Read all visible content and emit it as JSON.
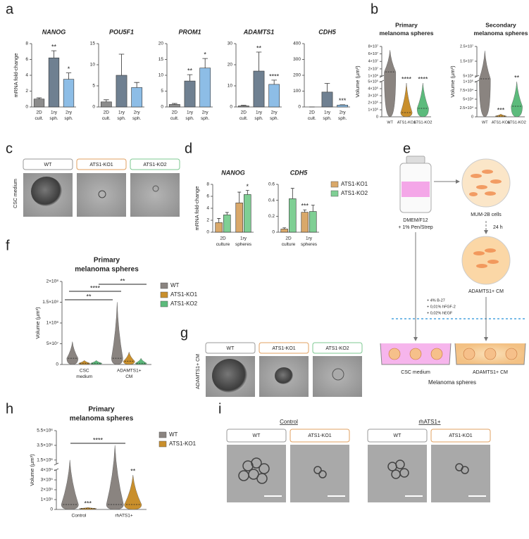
{
  "panel_letters": [
    "a",
    "b",
    "c",
    "d",
    "e",
    "f",
    "g",
    "h",
    "i"
  ],
  "panel_c": {
    "labels": [
      "WT",
      "ATS1-KO1",
      "ATS1-KO2"
    ],
    "side_label": "CSC medium"
  },
  "panel_e": {
    "medium": [
      "DMEM/F12",
      "+ 1% Pen/Strep"
    ],
    "cells": "MUM-2B cells",
    "time": "24 h",
    "conditioned": "ADAMTS1+ CM",
    "supplements": [
      "+ 4% B-27",
      "+ 0,01% hFGF-2",
      "+ 0,02% hEGF"
    ],
    "dish_labels": [
      "CSC medium",
      "ADAMTS1+ CM"
    ],
    "result": "Melanoma spheres"
  },
  "panel_g": {
    "labels": [
      "WT",
      "ATS1-KO1",
      "ATS1-KO2"
    ],
    "side_label": "ADAMTS1+ CM"
  },
  "panel_i": {
    "groups": [
      {
        "title": "Control",
        "labels": [
          "WT",
          "ATS1-KO1"
        ]
      },
      {
        "title": "rhATS1+",
        "labels": [
          "WT",
          "ATS1-KO1"
        ]
      }
    ]
  },
  "chart_data": [
    {
      "type": "bar",
      "title": "NANOG",
      "ylabel": "mRNA fold-change",
      "categories": [
        [
          "2D",
          "cult."
        ],
        [
          "1ry",
          "sph."
        ],
        [
          "2ry",
          "sph."
        ]
      ],
      "values": [
        1,
        6.2,
        3.5
      ],
      "errors": [
        0.15,
        0.9,
        0.8
      ],
      "annotations": [
        null,
        "**",
        "*"
      ],
      "colors": [
        "#8c8c8c",
        "#6f8091",
        "#8dbde6"
      ],
      "ylim": [
        0,
        8
      ],
      "yticks": [
        0,
        2,
        4,
        6,
        8
      ]
    },
    {
      "type": "bar",
      "title": "POU5F1",
      "categories": [
        [
          "2D",
          "cult."
        ],
        [
          "1ry",
          "sph."
        ],
        [
          "2ry",
          "sph."
        ]
      ],
      "values": [
        1.2,
        7.5,
        4.6
      ],
      "errors": [
        0.5,
        5,
        1.2
      ],
      "colors": [
        "#8c8c8c",
        "#6f8091",
        "#8dbde6"
      ],
      "ylim": [
        0,
        15
      ],
      "yticks": [
        0,
        5,
        10,
        15
      ]
    },
    {
      "type": "bar",
      "title": "PROM1",
      "categories": [
        [
          "2D",
          "cult."
        ],
        [
          "1ry",
          "sph."
        ],
        [
          "2ry",
          "sph."
        ]
      ],
      "values": [
        0.8,
        8.2,
        12.3
      ],
      "errors": [
        0.3,
        2,
        3
      ],
      "annotations": [
        null,
        "**",
        "*"
      ],
      "colors": [
        "#8c8c8c",
        "#6f8091",
        "#8dbde6"
      ],
      "ylim": [
        0,
        20
      ],
      "yticks": [
        0,
        5,
        10,
        15,
        20
      ]
    },
    {
      "type": "bar",
      "title": "ADAMTS1",
      "categories": [
        [
          "2D",
          "cult."
        ],
        [
          "1ry",
          "sph."
        ],
        [
          "2ry",
          "sph."
        ]
      ],
      "values": [
        0.5,
        17,
        10.7
      ],
      "errors": [
        0.3,
        9,
        2
      ],
      "annotations": [
        null,
        "**",
        "****"
      ],
      "colors": [
        "#8c8c8c",
        "#6f8091",
        "#8dbde6"
      ],
      "ylim": [
        0,
        30
      ],
      "yticks": [
        0,
        10,
        20,
        30
      ]
    },
    {
      "type": "bar",
      "title": "CDH5",
      "categories": [
        [
          "2D",
          "cult."
        ],
        [
          "1ry",
          "sph."
        ],
        [
          "2ry",
          "sph."
        ]
      ],
      "values": [
        0,
        94,
        12
      ],
      "errors": [
        0,
        55,
        2
      ],
      "annotations": [
        null,
        null,
        "***"
      ],
      "colors": [
        "#8c8c8c",
        "#6f8091",
        "#8dbde6"
      ],
      "ylim": [
        0,
        400
      ],
      "yticks": [
        0,
        100,
        200,
        300,
        400
      ]
    },
    {
      "type": "violin",
      "title": [
        "Primary",
        "melanoma spheres"
      ],
      "ylabel": "Volume (µm³)",
      "categories": [
        "WT",
        "ATS1-KO1",
        "ATS1-KO2"
      ],
      "colors": [
        "#8a8480",
        "#c98f2c",
        "#5cbb7c"
      ],
      "values": [
        12000000,
        60000,
        120000
      ],
      "max": [
        70000000,
        480000,
        480000
      ],
      "annotations": [
        null,
        "****",
        "****"
      ],
      "ylim": [
        0,
        80000000
      ],
      "ybreak": [
        500000,
        1000000
      ],
      "yticks": [
        0,
        {
          "value": 100000,
          "label": "1×10⁵"
        },
        {
          "value": 200000,
          "label": "2×10⁵"
        },
        {
          "value": 300000,
          "label": "3×10⁵"
        },
        {
          "value": 400000,
          "label": "4×10⁵"
        },
        {
          "value": 500000,
          "label": "5×10⁵"
        },
        {
          "value": 1000000,
          "label": "1×10⁶"
        },
        {
          "value": 20000000,
          "label": "2×10⁷"
        },
        {
          "value": 40000000,
          "label": "4×10⁷"
        },
        {
          "value": 60000000,
          "label": "6×10⁷"
        },
        {
          "value": 80000000,
          "label": "8×10⁷"
        }
      ]
    },
    {
      "type": "violin",
      "title": [
        "Secondary",
        "melanoma spheres"
      ],
      "ylabel": "Volume (µm³)",
      "categories": [
        "WT",
        "ATS1-KO1",
        "ATS1-KO2"
      ],
      "colors": [
        "#8a8480",
        "#c98f2c",
        "#5cbb7c"
      ],
      "values": [
        2000000,
        2000,
        30000
      ],
      "max": [
        22000000,
        8000,
        100000
      ],
      "annotations": [
        null,
        "***",
        "**"
      ],
      "ylim": [
        0,
        25000000
      ],
      "ybreak": [
        100000,
        5000000
      ],
      "yticks": [
        0,
        {
          "value": 25000,
          "label": "2.5×10⁴"
        },
        {
          "value": 50000,
          "label": "5×10⁴"
        },
        {
          "value": 75000,
          "label": "7.5×10⁴"
        },
        {
          "value": 100000,
          "label": "1×10⁵"
        },
        {
          "value": 5000000,
          "label": "5×10⁶"
        },
        {
          "value": 15000000,
          "label": "1.5×10⁷"
        },
        {
          "value": 25000000,
          "label": "2.5×10⁷"
        }
      ]
    },
    {
      "type": "bar",
      "title": "NANOG",
      "ylabel": "mRNA fold-change",
      "categories": [
        [
          "2D",
          "culture"
        ],
        [
          "1ry",
          "spheres"
        ]
      ],
      "series": [
        {
          "color": "#d9a86a",
          "values": [
            1.6,
            4.9
          ],
          "errors": [
            0.7,
            1.8
          ]
        },
        {
          "color": "#7fcf94",
          "values": [
            2.9,
            6.3
          ],
          "errors": [
            0.4,
            0.7
          ],
          "annotations": [
            null,
            "*"
          ]
        }
      ],
      "ylim": [
        0,
        8
      ],
      "yticks": [
        0,
        2,
        4,
        6,
        8
      ]
    },
    {
      "type": "bar",
      "title": "CDH5",
      "categories": [
        [
          "2D",
          "culture"
        ],
        [
          "1ry",
          "spheres"
        ]
      ],
      "series": [
        {
          "name": "ATS1-KO1",
          "color": "#d9a86a",
          "values": [
            0.04,
            0.25
          ],
          "errors": [
            0.015,
            0.03
          ],
          "annotations": [
            null,
            "***"
          ]
        },
        {
          "name": "ATS1-KO2",
          "color": "#7fcf94",
          "values": [
            0.42,
            0.26
          ],
          "errors": [
            0.13,
            0.08
          ]
        }
      ],
      "legend": true,
      "ylim": [
        0,
        0.6
      ],
      "yticks": [
        0,
        0.2,
        0.4,
        0.6
      ]
    },
    {
      "type": "violin",
      "title": [
        "Primary",
        "melanoma spheres"
      ],
      "ylabel": "Volume (µm³)",
      "categories": [
        [
          "CSC",
          "medium"
        ],
        [
          "ADAMTS1+",
          "CM"
        ]
      ],
      "series": [
        {
          "name": "WT",
          "color": "#8a8480",
          "values": [
            15000000,
            15000000
          ],
          "max": [
            55000000,
            150000000
          ]
        },
        {
          "name": "ATS1-KO1",
          "color": "#c98f2c",
          "values": [
            3000000,
            8000000
          ],
          "max": [
            10000000,
            30000000
          ]
        },
        {
          "name": "ATS1-KO2",
          "color": "#5cbb7c",
          "values": [
            3000000,
            3000000
          ],
          "max": [
            10000000,
            15000000
          ]
        }
      ],
      "significance": [
        "**",
        "****",
        "**"
      ],
      "legend": true,
      "ylim": [
        0,
        200000000
      ],
      "yticks": [
        0,
        {
          "value": 50000000,
          "label": "5×10⁷"
        },
        {
          "value": 100000000,
          "label": "1×10⁸"
        },
        {
          "value": 150000000,
          "label": "1.5×10⁸"
        },
        {
          "value": 200000000,
          "label": "2×10⁸"
        }
      ]
    },
    {
      "type": "violin",
      "title": [
        "Primary",
        "melanoma spheres"
      ],
      "ylabel": "Volume (µm³)",
      "categories": [
        "Control",
        "rhATS1+"
      ],
      "series": [
        {
          "name": "WT",
          "color": "#8a8480",
          "values": [
            50000,
            50000
          ],
          "max": [
            1500000,
            3500000
          ]
        },
        {
          "name": "ATS1-KO1",
          "color": "#c98f2c",
          "values": [
            10000,
            50000
          ],
          "max": [
            20000,
            350000
          ],
          "annotations": [
            "***",
            "**"
          ]
        }
      ],
      "significance": [
        "****"
      ],
      "legend": true,
      "ylim": [
        0,
        5500000
      ],
      "ybreak": [
        400000,
        1000000
      ],
      "yticks": [
        0,
        {
          "value": 100000,
          "label": "1×10⁵"
        },
        {
          "value": 200000,
          "label": "2×10⁵"
        },
        {
          "value": 300000,
          "label": "3×10⁵"
        },
        {
          "value": 400000,
          "label": "4×10⁵"
        },
        {
          "value": 1500000,
          "label": "1.5×10⁶"
        },
        {
          "value": 3500000,
          "label": "3.5×10⁶"
        },
        {
          "value": 5500000,
          "label": "5.5×10⁶"
        }
      ]
    }
  ]
}
